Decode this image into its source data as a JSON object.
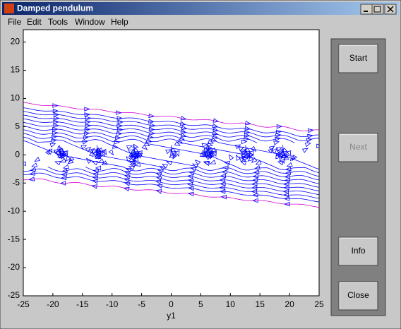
{
  "window": {
    "title": "Damped pendulum",
    "menu": [
      "File",
      "Edit",
      "Tools",
      "Window",
      "Help"
    ]
  },
  "chart_data": {
    "type": "phase-portrait",
    "xlabel": "y1",
    "xlim": [
      -25,
      25
    ],
    "ylim": [
      -25,
      22.2
    ],
    "xticks": [
      -25,
      -20,
      -15,
      -10,
      -5,
      0,
      5,
      10,
      15,
      20,
      25
    ],
    "yticks": [
      -25,
      -20,
      -15,
      -10,
      -5,
      0,
      5,
      10,
      15,
      20
    ]
  },
  "buttons": [
    {
      "label": "Start",
      "enabled": true
    },
    {
      "label": "Next",
      "enabled": false
    },
    {
      "label": "Info",
      "enabled": true
    },
    {
      "label": "Close",
      "enabled": true
    }
  ]
}
